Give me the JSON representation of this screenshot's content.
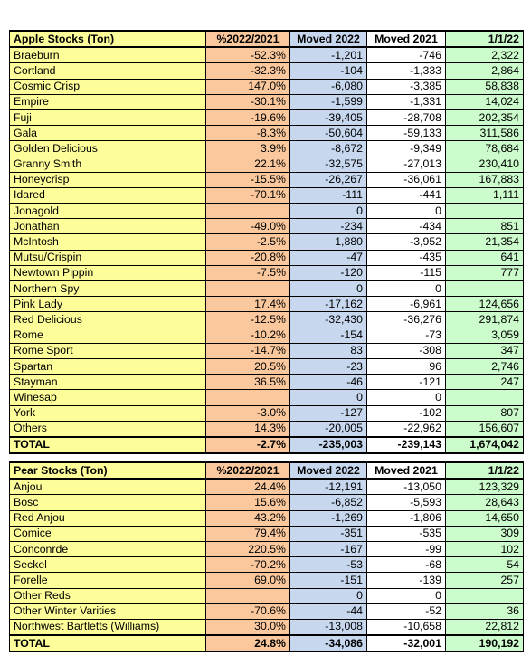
{
  "apple": {
    "headers": [
      "Apple Stocks (Ton)",
      "%2022/2021",
      "Moved 2022",
      "Moved 2021",
      "1/1/22"
    ],
    "rows": [
      [
        "Braeburn",
        "-52.3%",
        "-1,201",
        "-746",
        "2,322"
      ],
      [
        "Cortland",
        "-32.3%",
        "-104",
        "-1,333",
        "2,864"
      ],
      [
        "Cosmic Crisp",
        "147.0%",
        "-6,080",
        "-3,385",
        "58,838"
      ],
      [
        "Empire",
        "-30.1%",
        "-1,599",
        "-1,331",
        "14,024"
      ],
      [
        "Fuji",
        "-19.6%",
        "-39,405",
        "-28,708",
        "202,354"
      ],
      [
        "Gala",
        "-8.3%",
        "-50,604",
        "-59,133",
        "311,586"
      ],
      [
        "Golden Delicious",
        "3.9%",
        "-8,672",
        "-9,349",
        "78,684"
      ],
      [
        "Granny Smith",
        "22.1%",
        "-32,575",
        "-27,013",
        "230,410"
      ],
      [
        "Honeycrisp",
        "-15.5%",
        "-26,267",
        "-36,061",
        "167,883"
      ],
      [
        "Idared",
        "-70.1%",
        "-111",
        "-441",
        "1,111"
      ],
      [
        "Jonagold",
        "",
        "0",
        "0",
        ""
      ],
      [
        "Jonathan",
        "-49.0%",
        "-234",
        "-434",
        "851"
      ],
      [
        "McIntosh",
        "-2.5%",
        "1,880",
        "-3,952",
        "21,354"
      ],
      [
        "Mutsu/Crispin",
        "-20.8%",
        "-47",
        "-435",
        "641"
      ],
      [
        "Newtown Pippin",
        "-7.5%",
        "-120",
        "-115",
        "777"
      ],
      [
        "Northern Spy",
        "",
        "0",
        "0",
        ""
      ],
      [
        "Pink Lady",
        "17.4%",
        "-17,162",
        "-6,961",
        "124,656"
      ],
      [
        "Red Delicious",
        "-12.5%",
        "-32,430",
        "-36,276",
        "291,874"
      ],
      [
        "Rome",
        "-10.2%",
        "-154",
        "-73",
        "3,059"
      ],
      [
        "Rome Sport",
        "-14.7%",
        "83",
        "-308",
        "347"
      ],
      [
        "Spartan",
        "20.5%",
        "-23",
        "96",
        "2,746"
      ],
      [
        "Stayman",
        "36.5%",
        "-46",
        "-121",
        "247"
      ],
      [
        "Winesap",
        "",
        "0",
        "0",
        ""
      ],
      [
        "York",
        "-3.0%",
        "-127",
        "-102",
        "807"
      ],
      [
        "Others",
        "14.3%",
        "-20,005",
        "-22,962",
        "156,607"
      ]
    ],
    "total": [
      "TOTAL",
      "-2.7%",
      "-235,003",
      "-239,143",
      "1,674,042"
    ]
  },
  "pear": {
    "headers": [
      "Pear Stocks (Ton)",
      "%2022/2021",
      "Moved 2022",
      "Moved 2021",
      "1/1/22"
    ],
    "rows": [
      [
        "Anjou",
        "24.4%",
        "-12,191",
        "-13,050",
        "123,329"
      ],
      [
        "Bosc",
        "15.6%",
        "-6,852",
        "-5,593",
        "28,643"
      ],
      [
        "Red Anjou",
        "43.2%",
        "-1,269",
        "-1,806",
        "14,650"
      ],
      [
        "Comice",
        "79.4%",
        "-351",
        "-535",
        "309"
      ],
      [
        "Conconrde",
        "220.5%",
        "-167",
        "-99",
        "102"
      ],
      [
        "Seckel",
        "-70.2%",
        "-53",
        "-68",
        "54"
      ],
      [
        "Forelle",
        "69.0%",
        "-151",
        "-139",
        "257"
      ],
      [
        "Other Reds",
        "",
        "0",
        "0",
        ""
      ],
      [
        "Other Winter Varities",
        "-70.6%",
        "-44",
        "-52",
        "36"
      ],
      [
        "Northwest Bartletts (Williams)",
        "30.0%",
        "-13,008",
        "-10,658",
        "22,812"
      ]
    ],
    "total": [
      "TOTAL",
      "24.8%",
      "-34,086",
      "-32,001",
      "190,192"
    ]
  }
}
